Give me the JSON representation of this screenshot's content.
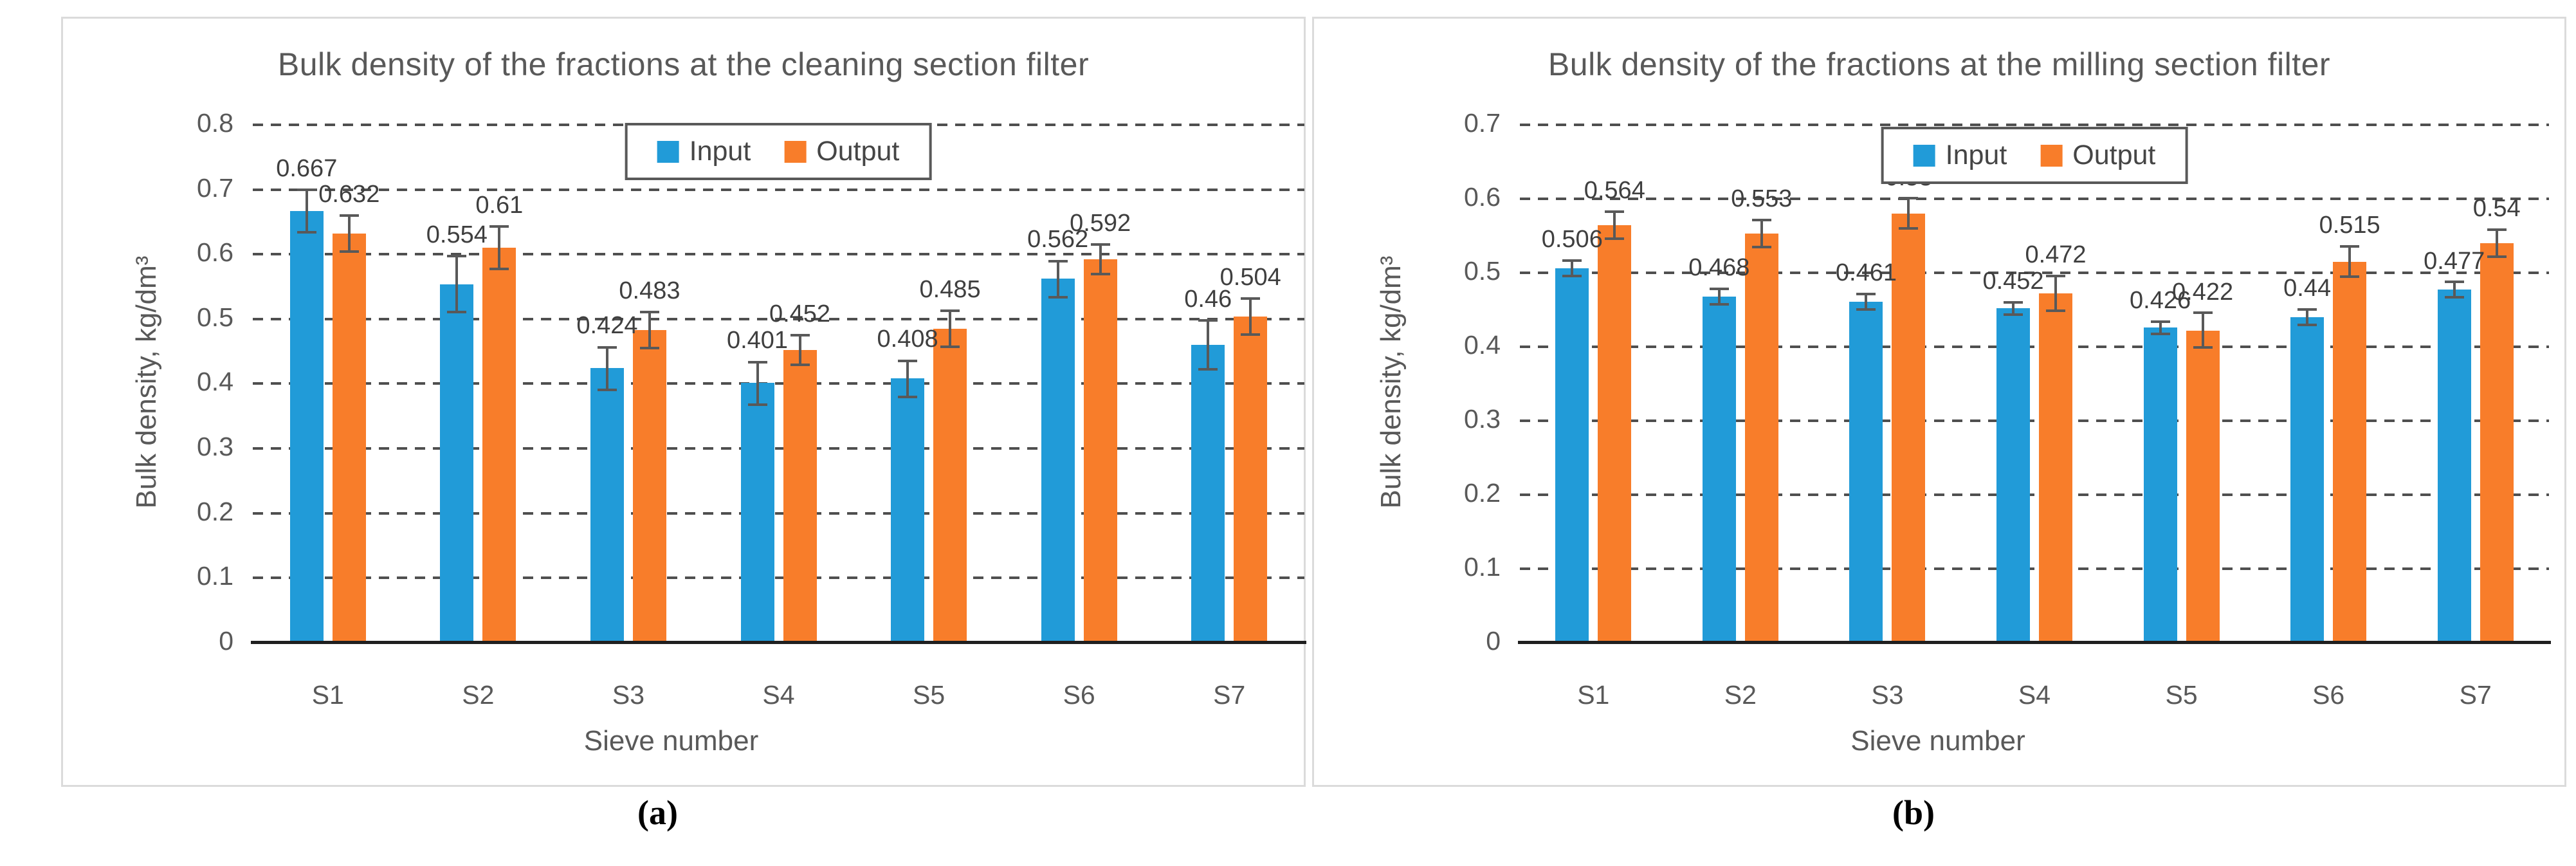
{
  "figure": {
    "description": "Two grouped bar charts comparing input and output bulk density by sieve number",
    "captions": [
      "(a)",
      "(b)"
    ]
  },
  "colors": {
    "input_bar": "#219BD8",
    "output_bar": "#F87D2A",
    "text_gray": "#595959",
    "data_label": "#3f3f3f",
    "gridline": "#4f4f4f",
    "error_bar": "#595959",
    "axis_line": "#1f1f1f",
    "panel_border": "#dbdbdb",
    "legend_border": "#595959"
  },
  "chart_data": [
    {
      "type": "bar",
      "title": "Bulk density of the fractions at the cleaning section filter",
      "xlabel": "Sieve number",
      "ylabel": "Bulk density, kg/dm³",
      "categories": [
        "S1",
        "S2",
        "S3",
        "S4",
        "S5",
        "S6",
        "S7"
      ],
      "ylim": [
        0,
        0.8
      ],
      "ytick_step": 0.1,
      "ytick_labels": [
        "0",
        "0.1",
        "0.2",
        "0.3",
        "0.4",
        "0.5",
        "0.6",
        "0.7",
        "0.8"
      ],
      "grid": "horizontal-dashed",
      "legend_position": "top-center",
      "caption": "(a)",
      "series": [
        {
          "name": "Input",
          "color": "#219BD8",
          "values": [
            0.667,
            0.554,
            0.424,
            0.401,
            0.408,
            0.562,
            0.46
          ],
          "value_labels": [
            "0.667",
            "0.554",
            "0.424",
            "0.401",
            "0.408",
            "0.562",
            "0.46"
          ],
          "errors_approx": [
            0.035,
            0.045,
            0.035,
            0.035,
            0.03,
            0.03,
            0.04
          ]
        },
        {
          "name": "Output",
          "color": "#F87D2A",
          "values": [
            0.632,
            0.61,
            0.483,
            0.452,
            0.485,
            0.592,
            0.504
          ],
          "value_labels": [
            "0.632",
            "0.61",
            "0.483",
            "0.452",
            "0.485",
            "0.592",
            "0.504"
          ],
          "errors_approx": [
            0.03,
            0.035,
            0.03,
            0.025,
            0.03,
            0.025,
            0.03
          ]
        }
      ]
    },
    {
      "type": "bar",
      "title": "Bulk density of the fractions at the milling section filter",
      "xlabel": "Sieve number",
      "ylabel": "Bulk density, kg/dm³",
      "categories": [
        "S1",
        "S2",
        "S3",
        "S4",
        "S5",
        "S6",
        "S7"
      ],
      "ylim": [
        0,
        0.7
      ],
      "ytick_step": 0.1,
      "ytick_labels": [
        "0",
        "0.1",
        "0.2",
        "0.3",
        "0.4",
        "0.5",
        "0.6",
        "0.7"
      ],
      "grid": "horizontal-dashed",
      "legend_position": "top-center",
      "caption": "(b)",
      "series": [
        {
          "name": "Input",
          "color": "#219BD8",
          "values": [
            0.506,
            0.468,
            0.461,
            0.452,
            0.426,
            0.44,
            0.477
          ],
          "value_labels": [
            "0.506",
            "0.468",
            "0.461",
            "0.452",
            "0.426",
            "0.44",
            "0.477"
          ],
          "errors_approx": [
            0.012,
            0.012,
            0.012,
            0.01,
            0.01,
            0.012,
            0.012
          ]
        },
        {
          "name": "Output",
          "color": "#F87D2A",
          "values": [
            0.564,
            0.553,
            0.58,
            0.472,
            0.422,
            0.515,
            0.54
          ],
          "value_labels": [
            "0.564",
            "0.553",
            "0.58",
            "0.472",
            "0.422",
            "0.515",
            "0.54"
          ],
          "errors_approx": [
            0.02,
            0.02,
            0.022,
            0.025,
            0.025,
            0.022,
            0.02
          ]
        }
      ]
    }
  ]
}
